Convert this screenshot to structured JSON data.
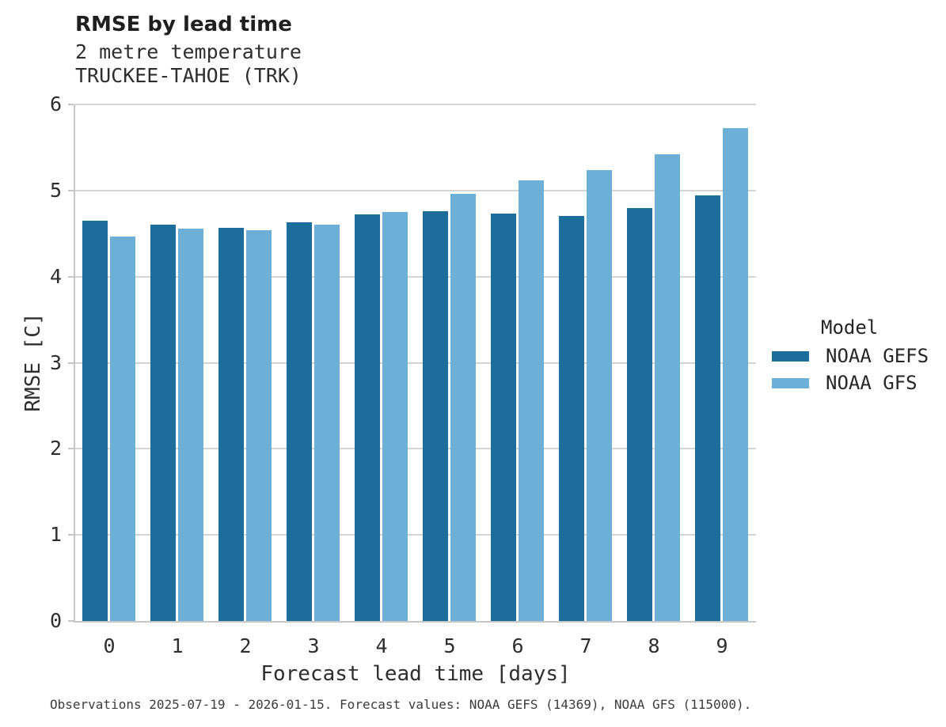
{
  "header": {
    "title": "RMSE by lead time",
    "subtitle": "2 metre temperature",
    "station": "TRUCKEE-TAHOE (TRK)"
  },
  "chart_data": {
    "type": "bar",
    "title": "RMSE by lead time",
    "subtitle": "2 metre temperature",
    "station": "TRUCKEE-TAHOE (TRK)",
    "xlabel": "Forecast lead time [days]",
    "ylabel": "RMSE [C]",
    "categories": [
      "0",
      "1",
      "2",
      "3",
      "4",
      "5",
      "6",
      "7",
      "8",
      "9"
    ],
    "series": [
      {
        "name": "NOAA GEFS",
        "color": "#1d6d9c",
        "values": [
          4.65,
          4.6,
          4.57,
          4.63,
          4.72,
          4.76,
          4.73,
          4.7,
          4.8,
          4.94
        ]
      },
      {
        "name": "NOAA GFS",
        "color": "#6cb0d7",
        "values": [
          4.47,
          4.56,
          4.54,
          4.6,
          4.75,
          4.96,
          5.12,
          5.24,
          5.42,
          5.72
        ]
      }
    ],
    "ylim": [
      0,
      6
    ],
    "yticks": [
      0,
      1,
      2,
      3,
      4,
      5,
      6
    ],
    "grid": true,
    "legend_title": "Model",
    "legend_position": "right"
  },
  "legend": {
    "title": "Model",
    "entries": [
      {
        "label": "NOAA GEFS",
        "color": "#1d6d9c"
      },
      {
        "label": "NOAA GFS",
        "color": "#6cb0d7"
      }
    ]
  },
  "axes": {
    "xlabel": "Forecast lead time [days]",
    "ylabel": "RMSE [C]"
  },
  "colors": {
    "grid": "#d4d4d4",
    "axis": "#c7c7c7",
    "background": "#ffffff"
  },
  "footer": {
    "note": "Observations 2025-07-19 - 2026-01-15. Forecast values: NOAA GEFS (14369), NOAA GFS (115000)."
  }
}
